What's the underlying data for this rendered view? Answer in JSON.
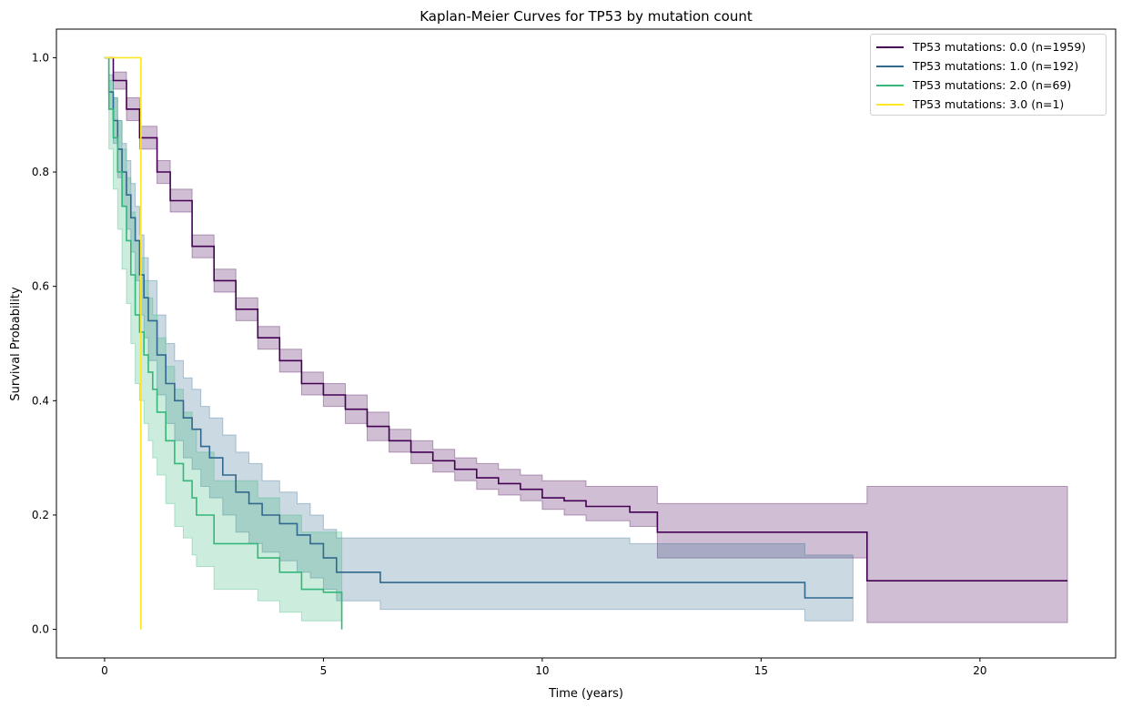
{
  "chart_data": {
    "type": "line",
    "title": "Kaplan-Meier Curves for TP53 by mutation count",
    "xlabel": "Time (years)",
    "ylabel": "Survival Probability",
    "xlim": [
      -1.1,
      23.1
    ],
    "ylim": [
      -0.05,
      1.05
    ],
    "x_ticks": [
      0,
      5,
      10,
      15,
      20
    ],
    "x_tick_labels": [
      "0",
      "5",
      "10",
      "15",
      "20"
    ],
    "y_ticks": [
      0.0,
      0.2,
      0.4,
      0.6,
      0.8,
      1.0
    ],
    "y_tick_labels": [
      "0.0",
      "0.2",
      "0.4",
      "0.6",
      "0.8",
      "1.0"
    ],
    "grid": false,
    "legend_position": "top-right",
    "series": [
      {
        "name": "TP53 mutations: 0.0 (n=1959)",
        "color": "#440154",
        "step": true,
        "x": [
          0,
          0.2,
          0.5,
          0.8,
          1.2,
          1.5,
          2.0,
          2.5,
          3.0,
          3.5,
          4.0,
          4.5,
          5.0,
          5.5,
          6.0,
          6.5,
          7.0,
          7.5,
          8.0,
          8.5,
          9.0,
          9.5,
          10.0,
          10.5,
          11.0,
          11.5,
          12.0,
          12.6,
          12.63,
          17.4,
          17.42,
          22.0
        ],
        "y": [
          1.0,
          0.96,
          0.91,
          0.86,
          0.8,
          0.75,
          0.67,
          0.61,
          0.56,
          0.51,
          0.47,
          0.43,
          0.41,
          0.385,
          0.355,
          0.33,
          0.31,
          0.295,
          0.28,
          0.265,
          0.255,
          0.245,
          0.23,
          0.225,
          0.215,
          0.215,
          0.205,
          0.205,
          0.17,
          0.17,
          0.085,
          0.085
        ],
        "ci_upper": [
          1.0,
          0.975,
          0.93,
          0.88,
          0.82,
          0.77,
          0.69,
          0.63,
          0.58,
          0.53,
          0.49,
          0.45,
          0.43,
          0.41,
          0.38,
          0.35,
          0.33,
          0.315,
          0.3,
          0.29,
          0.28,
          0.27,
          0.26,
          0.26,
          0.25,
          0.25,
          0.25,
          0.25,
          0.22,
          0.22,
          0.25,
          0.25
        ],
        "ci_lower": [
          1.0,
          0.945,
          0.89,
          0.84,
          0.78,
          0.73,
          0.65,
          0.59,
          0.54,
          0.49,
          0.45,
          0.41,
          0.39,
          0.36,
          0.33,
          0.31,
          0.29,
          0.275,
          0.26,
          0.245,
          0.235,
          0.225,
          0.21,
          0.2,
          0.19,
          0.19,
          0.18,
          0.18,
          0.125,
          0.125,
          0.012,
          0.012
        ]
      },
      {
        "name": "TP53 mutations: 1.0 (n=192)",
        "color": "#31688e",
        "step": true,
        "x": [
          0,
          0.1,
          0.2,
          0.3,
          0.4,
          0.5,
          0.6,
          0.7,
          0.8,
          0.9,
          1.0,
          1.2,
          1.4,
          1.6,
          1.8,
          2.0,
          2.2,
          2.4,
          2.7,
          3.0,
          3.3,
          3.6,
          4.0,
          4.4,
          4.7,
          5.0,
          5.3,
          6.3,
          8.0,
          12.0,
          16.0,
          17.1
        ],
        "y": [
          1.0,
          0.94,
          0.89,
          0.84,
          0.8,
          0.76,
          0.72,
          0.68,
          0.62,
          0.58,
          0.54,
          0.48,
          0.43,
          0.4,
          0.37,
          0.35,
          0.32,
          0.3,
          0.27,
          0.24,
          0.22,
          0.2,
          0.185,
          0.165,
          0.15,
          0.125,
          0.1,
          0.082,
          0.082,
          0.082,
          0.055,
          0.055
        ],
        "ci_upper": [
          1.0,
          0.97,
          0.93,
          0.89,
          0.85,
          0.82,
          0.78,
          0.74,
          0.69,
          0.65,
          0.61,
          0.55,
          0.5,
          0.47,
          0.44,
          0.42,
          0.39,
          0.37,
          0.34,
          0.31,
          0.29,
          0.26,
          0.24,
          0.22,
          0.2,
          0.175,
          0.16,
          0.16,
          0.16,
          0.15,
          0.13,
          0.13
        ],
        "ci_lower": [
          1.0,
          0.91,
          0.85,
          0.79,
          0.74,
          0.7,
          0.66,
          0.61,
          0.55,
          0.51,
          0.47,
          0.41,
          0.36,
          0.33,
          0.3,
          0.28,
          0.25,
          0.23,
          0.2,
          0.17,
          0.15,
          0.135,
          0.12,
          0.1,
          0.09,
          0.07,
          0.05,
          0.035,
          0.035,
          0.035,
          0.015,
          0.015
        ]
      },
      {
        "name": "TP53 mutations: 2.0 (n=69)",
        "color": "#35b779",
        "step": true,
        "x": [
          0,
          0.1,
          0.2,
          0.3,
          0.4,
          0.5,
          0.6,
          0.7,
          0.8,
          0.9,
          1.0,
          1.1,
          1.2,
          1.4,
          1.6,
          1.8,
          2.0,
          2.1,
          2.5,
          3.0,
          3.5,
          4.0,
          4.5,
          5.0,
          5.42
        ],
        "y": [
          1.0,
          0.91,
          0.86,
          0.8,
          0.74,
          0.68,
          0.62,
          0.55,
          0.52,
          0.48,
          0.45,
          0.42,
          0.38,
          0.33,
          0.29,
          0.26,
          0.23,
          0.2,
          0.15,
          0.15,
          0.125,
          0.1,
          0.07,
          0.065,
          0.0
        ],
        "ci_upper": [
          1.0,
          0.96,
          0.93,
          0.89,
          0.84,
          0.79,
          0.73,
          0.68,
          0.65,
          0.61,
          0.58,
          0.55,
          0.51,
          0.46,
          0.42,
          0.38,
          0.35,
          0.31,
          0.26,
          0.26,
          0.23,
          0.2,
          0.17,
          0.17,
          0.17
        ],
        "ci_lower": [
          1.0,
          0.84,
          0.77,
          0.7,
          0.63,
          0.57,
          0.5,
          0.43,
          0.4,
          0.36,
          0.33,
          0.3,
          0.27,
          0.22,
          0.18,
          0.16,
          0.13,
          0.11,
          0.07,
          0.07,
          0.05,
          0.03,
          0.015,
          0.015,
          0.015
        ]
      },
      {
        "name": "TP53 mutations: 3.0 (n=1)",
        "color": "#fde725",
        "step": true,
        "x": [
          0,
          0.83
        ],
        "y": [
          1.0,
          0.0
        ]
      }
    ]
  }
}
